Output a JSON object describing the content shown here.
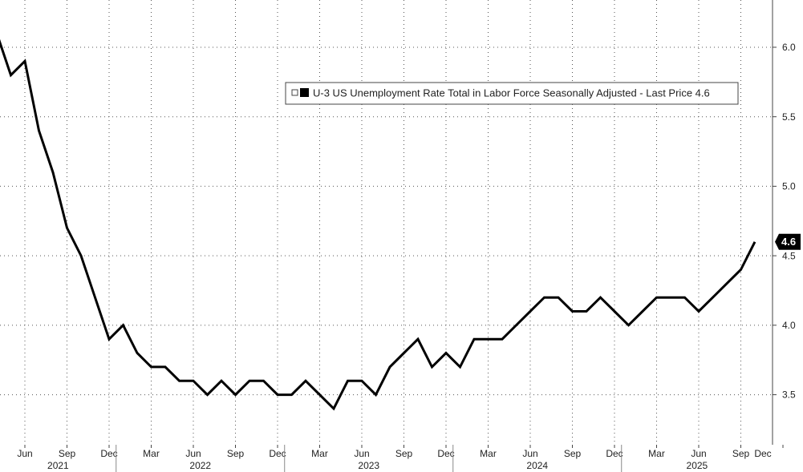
{
  "chart_data": {
    "type": "line",
    "x": [
      "2021-04",
      "2021-05",
      "2021-06",
      "2021-07",
      "2021-08",
      "2021-09",
      "2021-10",
      "2021-11",
      "2021-12",
      "2022-01",
      "2022-02",
      "2022-03",
      "2022-04",
      "2022-05",
      "2022-06",
      "2022-07",
      "2022-08",
      "2022-09",
      "2022-10",
      "2022-11",
      "2022-12",
      "2023-01",
      "2023-02",
      "2023-03",
      "2023-04",
      "2023-05",
      "2023-06",
      "2023-07",
      "2023-08",
      "2023-09",
      "2023-10",
      "2023-11",
      "2023-12",
      "2024-01",
      "2024-02",
      "2024-03",
      "2024-04",
      "2024-05",
      "2024-06",
      "2024-07",
      "2024-08",
      "2024-09",
      "2024-10",
      "2024-11",
      "2024-12",
      "2025-01",
      "2025-02",
      "2025-03",
      "2025-04",
      "2025-05",
      "2025-06",
      "2025-07",
      "2025-08",
      "2025-09",
      "2025-10"
    ],
    "series": [
      {
        "name": "U-3 US Unemployment Rate Total in Labor Force Seasonally Adjusted - Last Price 4.6",
        "color": "#000000",
        "values": [
          6.1,
          5.8,
          5.9,
          5.4,
          5.1,
          4.7,
          4.5,
          4.2,
          3.9,
          4.0,
          3.8,
          3.7,
          3.7,
          3.6,
          3.6,
          3.5,
          3.6,
          3.5,
          3.6,
          3.6,
          3.5,
          3.5,
          3.6,
          3.5,
          3.4,
          3.6,
          3.6,
          3.5,
          3.7,
          3.8,
          3.9,
          3.7,
          3.8,
          3.7,
          3.9,
          3.9,
          3.9,
          4.0,
          4.1,
          4.2,
          4.2,
          4.1,
          4.1,
          4.2,
          4.1,
          4.0,
          4.1,
          4.2,
          4.2,
          4.2,
          4.1,
          4.2,
          4.3,
          4.4,
          4.6
        ]
      }
    ],
    "xticks": [
      {
        "value": "2021-06",
        "label": "Jun"
      },
      {
        "value": "2021-09",
        "label": "Sep"
      },
      {
        "value": "2021-12",
        "label": "Dec"
      },
      {
        "value": "2022-03",
        "label": "Mar"
      },
      {
        "value": "2022-06",
        "label": "Jun"
      },
      {
        "value": "2022-09",
        "label": "Sep"
      },
      {
        "value": "2022-12",
        "label": "Dec"
      },
      {
        "value": "2023-03",
        "label": "Mar"
      },
      {
        "value": "2023-06",
        "label": "Jun"
      },
      {
        "value": "2023-09",
        "label": "Sep"
      },
      {
        "value": "2023-12",
        "label": "Dec"
      },
      {
        "value": "2024-03",
        "label": "Mar"
      },
      {
        "value": "2024-06",
        "label": "Jun"
      },
      {
        "value": "2024-09",
        "label": "Sep"
      },
      {
        "value": "2024-12",
        "label": "Dec"
      },
      {
        "value": "2025-03",
        "label": "Mar"
      },
      {
        "value": "2025-06",
        "label": "Jun"
      },
      {
        "value": "2025-09",
        "label": "Sep"
      },
      {
        "value": "2025-12",
        "label": "Dec"
      }
    ],
    "years": [
      "2021",
      "2022",
      "2023",
      "2024",
      "2025"
    ],
    "ylim": [
      3.14,
      6.34
    ],
    "yticks": [
      {
        "value": 3.5,
        "label": "3.5"
      },
      {
        "value": 4.0,
        "label": "4.0"
      },
      {
        "value": 4.5,
        "label": "4.5"
      },
      {
        "value": 5.0,
        "label": "5.0"
      },
      {
        "value": 5.5,
        "label": "5.5"
      },
      {
        "value": 6.0,
        "label": "6.0"
      }
    ],
    "grid": true
  }
}
